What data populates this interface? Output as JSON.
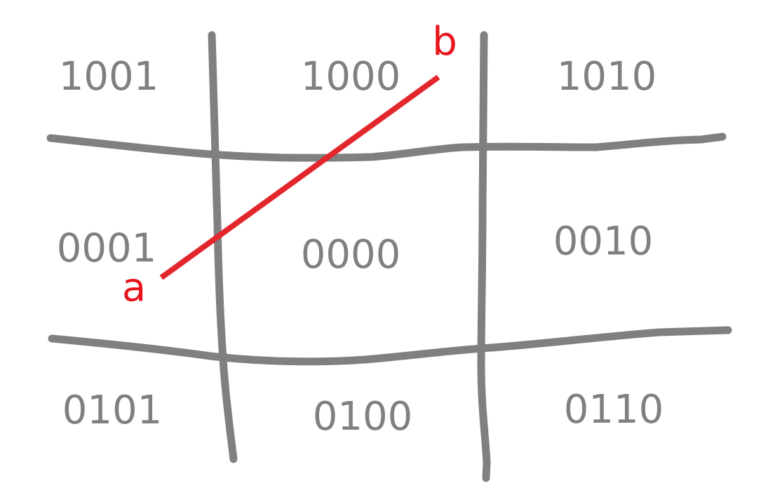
{
  "colors": {
    "grid": "#808080",
    "segment": "#e3262c",
    "label": "#e8141c"
  },
  "regions": {
    "top_left": "1001",
    "top_center": "1000",
    "top_right": "1010",
    "middle_left": "0001",
    "middle_center": "0000",
    "middle_right": "0010",
    "bottom_left": "0101",
    "bottom_center": "0100",
    "bottom_right": "0110"
  },
  "segment": {
    "start_label": "a",
    "end_label": "b"
  }
}
